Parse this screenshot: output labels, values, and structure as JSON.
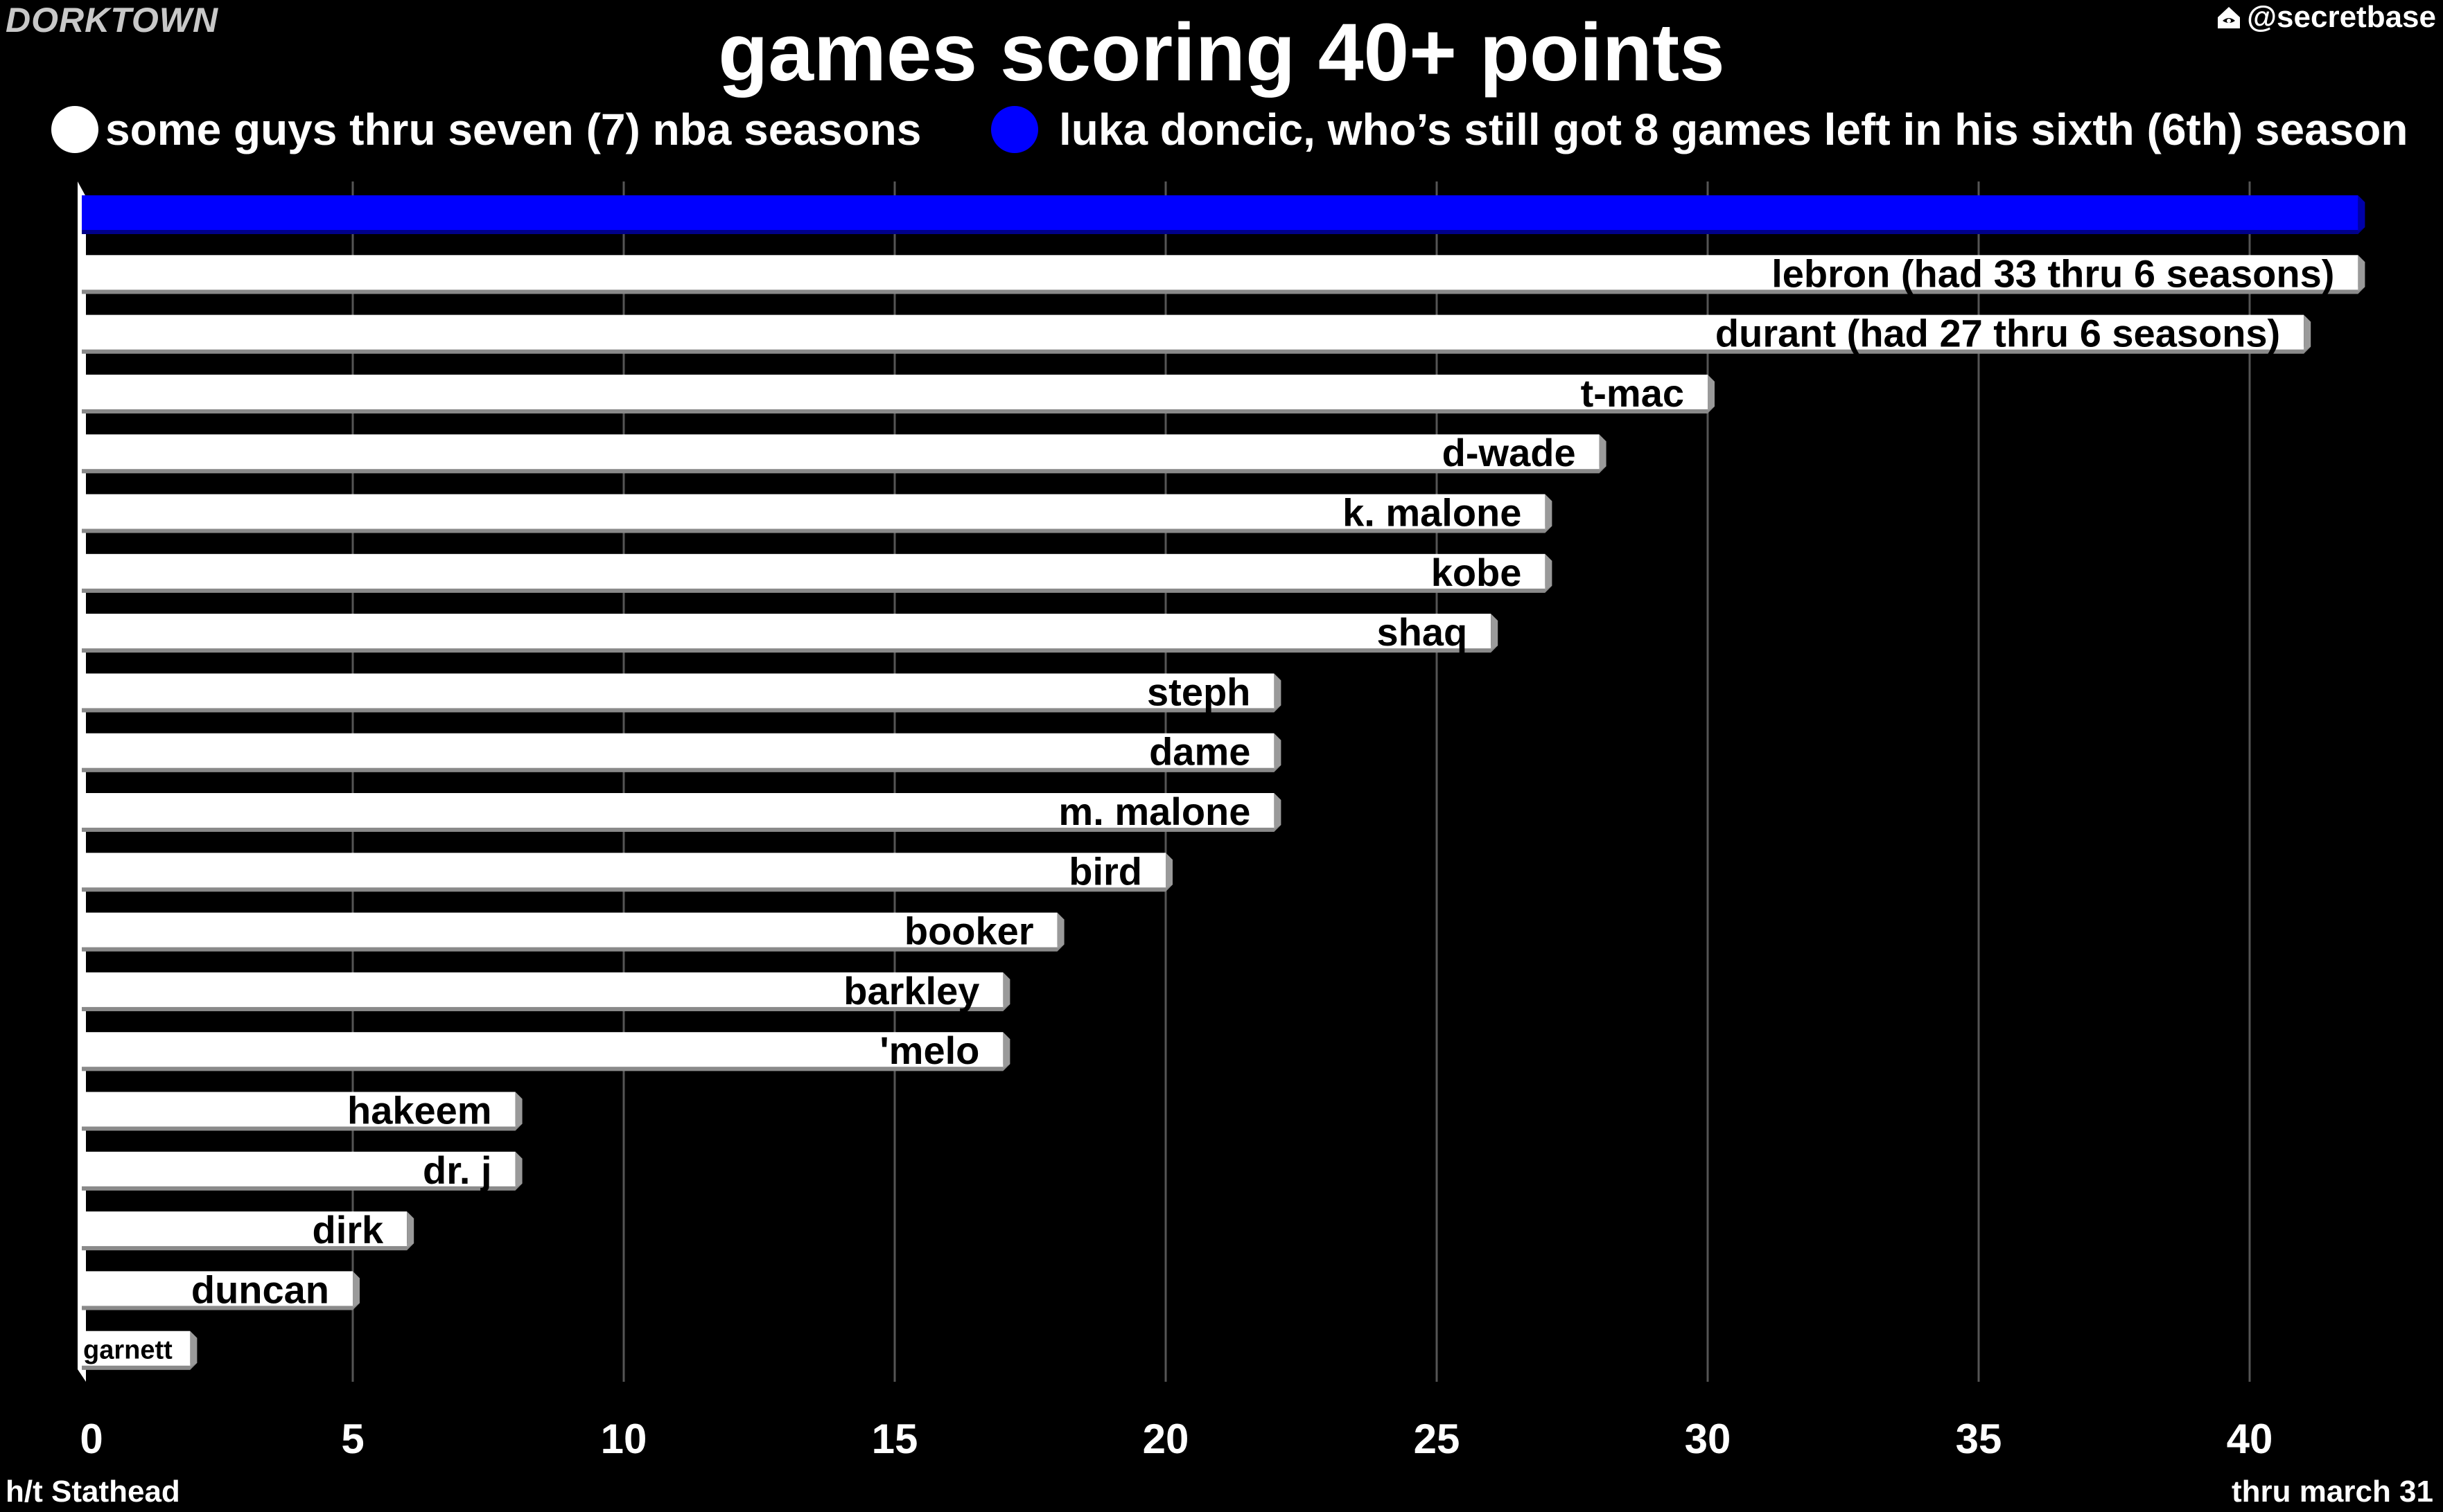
{
  "header": {
    "brand": "DORKTOWN",
    "handle": "@secretbase",
    "handle_icon": "home-icon",
    "title": "games scoring 40+ points"
  },
  "legend": [
    {
      "label": "some guys thru seven (7) nba seasons",
      "color": "#ffffff"
    },
    {
      "label": "luka doncic, who’s still got 8 games left in his sixth (6th) season",
      "color": "#0000ff"
    }
  ],
  "footer": {
    "source": "h/t Stathead",
    "as_of": "thru march 31"
  },
  "chart_data": {
    "type": "bar",
    "orientation": "horizontal",
    "title": "games scoring 40+ points",
    "xlabel": "",
    "ylabel": "",
    "xlim": [
      0,
      42
    ],
    "xticks": [
      0,
      5,
      10,
      15,
      20,
      25,
      30,
      35,
      40
    ],
    "grid": true,
    "legend_position": "top",
    "bars": [
      {
        "label": "",
        "value": 42,
        "color": "#0000ff"
      },
      {
        "label": "lebron (had 33 thru 6 seasons)",
        "value": 42,
        "color": "#ffffff"
      },
      {
        "label": "durant (had 27 thru 6 seasons)",
        "value": 41,
        "color": "#ffffff"
      },
      {
        "label": "t-mac",
        "value": 30,
        "color": "#ffffff"
      },
      {
        "label": "d-wade",
        "value": 28,
        "color": "#ffffff"
      },
      {
        "label": "k. malone",
        "value": 27,
        "color": "#ffffff"
      },
      {
        "label": "kobe",
        "value": 27,
        "color": "#ffffff"
      },
      {
        "label": "shaq",
        "value": 26,
        "color": "#ffffff"
      },
      {
        "label": "steph",
        "value": 22,
        "color": "#ffffff"
      },
      {
        "label": "dame",
        "value": 22,
        "color": "#ffffff"
      },
      {
        "label": "m. malone",
        "value": 22,
        "color": "#ffffff"
      },
      {
        "label": "bird",
        "value": 20,
        "color": "#ffffff"
      },
      {
        "label": "booker",
        "value": 18,
        "color": "#ffffff"
      },
      {
        "label": "barkley",
        "value": 17,
        "color": "#ffffff"
      },
      {
        "label": "'melo",
        "value": 17,
        "color": "#ffffff"
      },
      {
        "label": "hakeem",
        "value": 8,
        "color": "#ffffff"
      },
      {
        "label": "dr. j",
        "value": 8,
        "color": "#ffffff"
      },
      {
        "label": "dirk",
        "value": 6,
        "color": "#ffffff"
      },
      {
        "label": "duncan",
        "value": 5,
        "color": "#ffffff"
      },
      {
        "label": "garnett",
        "value": 2,
        "color": "#ffffff"
      }
    ]
  }
}
